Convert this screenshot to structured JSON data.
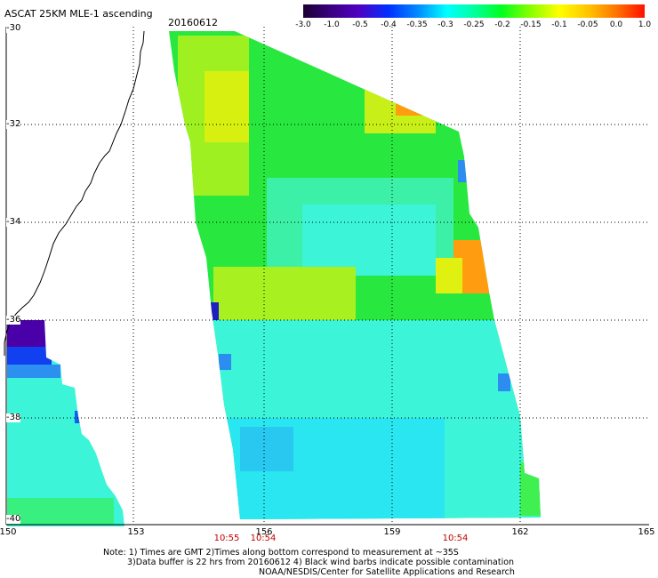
{
  "header": {
    "title": "ASCAT 25KM MLE-1 ascending",
    "date": "20160612"
  },
  "colorbar": {
    "ticks": [
      "-3.0",
      "-1.0",
      "-0.5",
      "-0.4",
      "-0.35",
      "-0.3",
      "-0.25",
      "-0.2",
      "-0.15",
      "-0.1",
      "-0.05",
      "0.0",
      "1.0"
    ],
    "colors": [
      "#2a0038",
      "#5a00a8",
      "#0010ff",
      "#0080ff",
      "#00c8ff",
      "#00ffff",
      "#00ff9a",
      "#00ff00",
      "#a0ff00",
      "#ffff00",
      "#ffb000",
      "#ff4000"
    ]
  },
  "map": {
    "lat_labels": [
      "-30",
      "-32",
      "-34",
      "-36",
      "-38",
      "-40"
    ],
    "lon_labels": [
      "150",
      "153",
      "156",
      "159",
      "162",
      "165"
    ],
    "pass_times": [
      "10:55",
      "10:54",
      "10:54"
    ]
  },
  "notes": {
    "line1": "Note: 1) Times are GMT 2)Times along bottom correspond to measurement at ~35S",
    "line2": "3)Data buffer is 22 hrs from 20160612 4) Black wind barbs indicate possible contamination",
    "line3": "NOAA/NESDIS/Center for Satellite Applications and Research"
  }
}
